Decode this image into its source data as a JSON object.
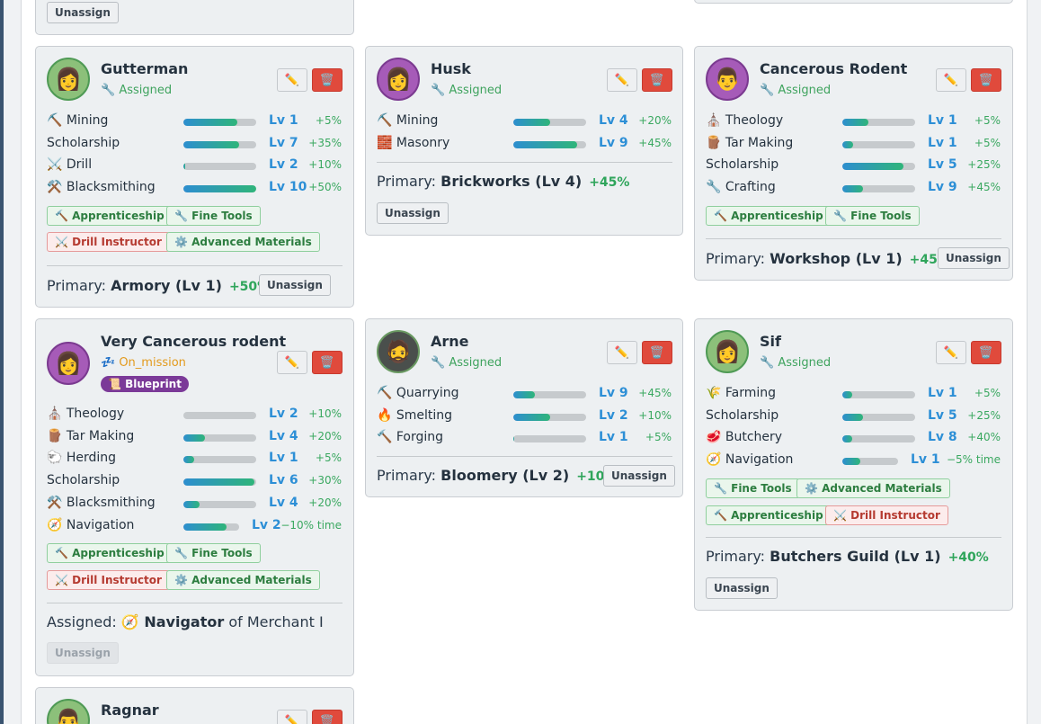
{
  "colors": {
    "accent": "#2d8fd6",
    "bonus": "#3aa860",
    "delete": "#e04a3c",
    "mission": "#e39a1c",
    "blueprint": "#7b3a98"
  },
  "icons": {
    "edit": "✏️",
    "delete": "🗑️"
  },
  "top_card": {
    "unassign": "Unassign"
  },
  "cards": {
    "gutterman": {
      "avatar": "👩",
      "name": "Gutterman",
      "status": "🔧 Assigned",
      "skills": [
        {
          "name": "⛏️ Mining",
          "level": "Lv 1",
          "bonus": "+5%",
          "progress": 0.74
        },
        {
          "name": "Scholarship",
          "level": "Lv 7",
          "bonus": "+35%",
          "progress": 0.76
        },
        {
          "name": "⚔️ Drill",
          "level": "Lv 2",
          "bonus": "+10%",
          "progress": 0.02
        },
        {
          "name": "⚒️ Blacksmithing",
          "level": "Lv 10",
          "bonus": "+50%",
          "progress": 1.0
        }
      ],
      "tags": [
        "🔨 Apprenticeship",
        "🔧 Fine Tools",
        "⚔️ Drill Instructor",
        "⚙️ Advanced Materials"
      ],
      "primary_label": "Primary:",
      "primary_name": "Armory (Lv 1)",
      "primary_bonus": "+50%",
      "unassign": "Unassign"
    },
    "husk": {
      "avatar": "👩",
      "name": "Husk",
      "status": "🔧 Assigned",
      "skills": [
        {
          "name": "⛏️ Mining",
          "level": "Lv 4",
          "bonus": "+20%",
          "progress": 0.5
        },
        {
          "name": "🧱 Masonry",
          "level": "Lv 9",
          "bonus": "+45%",
          "progress": 0.88
        }
      ],
      "primary_label": "Primary:",
      "primary_name": "Brickworks (Lv 4)",
      "primary_bonus": "+45%",
      "unassign": "Unassign"
    },
    "cancerous": {
      "avatar": "👨",
      "name": "Cancerous Rodent",
      "status": "🔧 Assigned",
      "skills": [
        {
          "name": "⛪ Theology",
          "level": "Lv 1",
          "bonus": "+5%",
          "progress": 0.36
        },
        {
          "name": "🪵 Tar Making",
          "level": "Lv 1",
          "bonus": "+5%",
          "progress": 0.15
        },
        {
          "name": "Scholarship",
          "level": "Lv 5",
          "bonus": "+25%",
          "progress": 0.84
        },
        {
          "name": "🔧 Crafting",
          "level": "Lv 9",
          "bonus": "+45%",
          "progress": 0.28
        }
      ],
      "tags": [
        "🔨 Apprenticeship",
        "🔧 Fine Tools"
      ],
      "primary_label": "Primary:",
      "primary_name": "Workshop (Lv 1)",
      "primary_bonus": "+45%",
      "unassign": "Unassign"
    },
    "very": {
      "avatar": "👩",
      "name": "Very Cancerous rodent",
      "status": "💤 On_mission",
      "badge": "📜 Blueprint",
      "skills": [
        {
          "name": "⛪ Theology",
          "level": "Lv 2",
          "bonus": "+10%",
          "progress": 0.0
        },
        {
          "name": "🪵 Tar Making",
          "level": "Lv 4",
          "bonus": "+20%",
          "progress": 0.3
        },
        {
          "name": "🐑 Herding",
          "level": "Lv 1",
          "bonus": "+5%",
          "progress": 0.15
        },
        {
          "name": "Scholarship",
          "level": "Lv 6",
          "bonus": "+30%",
          "progress": 0.98
        },
        {
          "name": "⚒️ Blacksmithing",
          "level": "Lv 4",
          "bonus": "+20%",
          "progress": 0.22
        },
        {
          "name": "🧭 Navigation",
          "level": "Lv 2",
          "bonus": "−10% time",
          "progress": 0.78
        }
      ],
      "tags": [
        "🔨 Apprenticeship",
        "🔧 Fine Tools",
        "⚔️ Drill Instructor",
        "⚙️ Advanced Materials"
      ],
      "assigned_label": "Assigned:",
      "assigned_role": "🧭 Navigator",
      "assigned_of": "of Merchant I",
      "unassign": "Unassign"
    },
    "arne": {
      "avatar": "🧔",
      "name": "Arne",
      "status": "🔧 Assigned",
      "skills": [
        {
          "name": "⛏️ Quarrying",
          "level": "Lv 9",
          "bonus": "+45%",
          "progress": 0.3
        },
        {
          "name": "🔥 Smelting",
          "level": "Lv 2",
          "bonus": "+10%",
          "progress": 0.5
        },
        {
          "name": "🔨 Forging",
          "level": "Lv 1",
          "bonus": "+5%",
          "progress": 0.01
        }
      ],
      "primary_label": "Primary:",
      "primary_name": "Bloomery (Lv 2)",
      "primary_bonus": "+10%",
      "unassign": "Unassign"
    },
    "sif": {
      "avatar": "👩",
      "name": "Sif",
      "status": "🔧 Assigned",
      "skills": [
        {
          "name": "🌾 Farming",
          "level": "Lv 1",
          "bonus": "+5%",
          "progress": 0.13
        },
        {
          "name": "Scholarship",
          "level": "Lv 5",
          "bonus": "+25%",
          "progress": 0.28
        },
        {
          "name": "🥩 Butchery",
          "level": "Lv 8",
          "bonus": "+40%",
          "progress": 0.13
        },
        {
          "name": "🧭 Navigation",
          "level": "Lv 1",
          "bonus": "−5% time",
          "progress": 0.33
        }
      ],
      "tags": [
        "🔧 Fine Tools",
        "⚙️ Advanced Materials",
        "🔨 Apprenticeship",
        "⚔️ Drill Instructor"
      ],
      "primary_label": "Primary:",
      "primary_name": "Butchers Guild (Lv 1)",
      "primary_bonus": "+40%",
      "unassign": "Unassign"
    },
    "ragnar": {
      "avatar": "👨",
      "name": "Ragnar"
    }
  }
}
